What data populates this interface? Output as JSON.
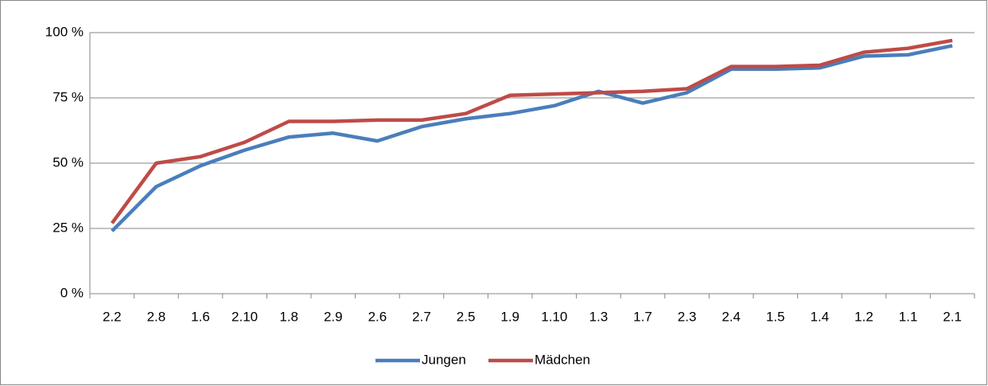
{
  "chart_data": {
    "type": "line",
    "categories": [
      "2.2",
      "2.8",
      "1.6",
      "2.10",
      "1.8",
      "2.9",
      "2.6",
      "2.7",
      "2.5",
      "1.9",
      "1.10",
      "1.3",
      "1.7",
      "2.3",
      "2.4",
      "1.5",
      "1.4",
      "1.2",
      "1.1",
      "2.1"
    ],
    "series": [
      {
        "name": "Jungen",
        "color": "#4a7ebb",
        "values": [
          24,
          41,
          49,
          55,
          60,
          61.5,
          58.5,
          64,
          67,
          69,
          72,
          77.5,
          73,
          77,
          86,
          86,
          86.5,
          91,
          91.5,
          95
        ]
      },
      {
        "name": "Mädchen",
        "color": "#be4b48",
        "values": [
          27,
          50,
          52.5,
          58,
          66,
          66,
          66.5,
          66.5,
          69,
          76,
          76.5,
          77,
          77.5,
          78.5,
          87,
          87,
          87.5,
          92.5,
          94,
          97
        ]
      }
    ],
    "ylim": [
      0,
      100
    ],
    "yticks": [
      {
        "value": 0,
        "label": "0 %"
      },
      {
        "value": 25,
        "label": "25 %"
      },
      {
        "value": 50,
        "label": "50 %"
      },
      {
        "value": 75,
        "label": "75 %"
      },
      {
        "value": 100,
        "label": "100 %"
      }
    ],
    "grid": true,
    "legend": "bottom"
  }
}
